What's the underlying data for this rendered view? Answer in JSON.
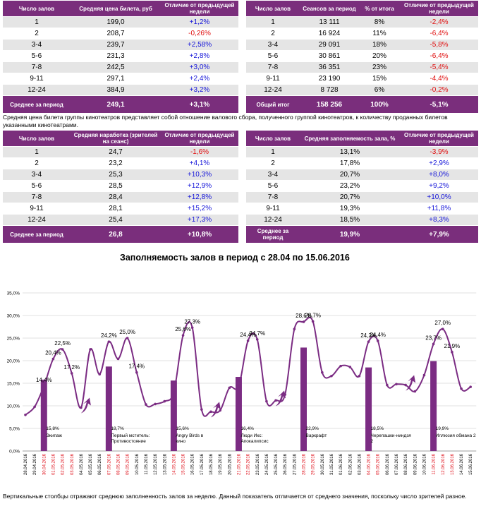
{
  "table1": {
    "headers": [
      "Число залов",
      "Средняя цена билета, руб",
      "Отличие от предыдущей недели"
    ],
    "rows": [
      [
        "1",
        "199,0",
        "+1,2%"
      ],
      [
        "2",
        "208,7",
        "-0,26%"
      ],
      [
        "3-4",
        "239,7",
        "+2,58%"
      ],
      [
        "5-6",
        "231,3",
        "+2,8%"
      ],
      [
        "7-8",
        "242,5",
        "+3,0%"
      ],
      [
        "9-11",
        "297,1",
        "+2,4%"
      ],
      [
        "12-24",
        "384,9",
        "+3,2%"
      ]
    ],
    "total": [
      "Среднее за период",
      "249,1",
      "+3,1%"
    ]
  },
  "table2": {
    "headers": [
      "Число залов",
      "Сеансов за период",
      "% от итога",
      "Отличие от предыдущей недели"
    ],
    "rows": [
      [
        "1",
        "13 111",
        "8%",
        "-2,4%"
      ],
      [
        "2",
        "16 924",
        "11%",
        "-6,4%"
      ],
      [
        "3-4",
        "29 091",
        "18%",
        "-5,8%"
      ],
      [
        "5-6",
        "30 861",
        "20%",
        "-6,4%"
      ],
      [
        "7-8",
        "36 351",
        "23%",
        "-5,4%"
      ],
      [
        "9-11",
        "23 190",
        "15%",
        "-4,4%"
      ],
      [
        "12-24",
        "8 728",
        "6%",
        "-0,2%"
      ]
    ],
    "total": [
      "Общий итог",
      "158 256",
      "100%",
      "-5,1%"
    ]
  },
  "note1": "Средняя цена билета группы кинотеатров представляет собой отношение валового сбора, полученного группой кинотеатров, к количеству проданных билетов указанными кинотеатрами.",
  "table3": {
    "headers": [
      "Число залов",
      "Средняя наработка (зрителей на сеанс)",
      "Отличие от предыдущей недели"
    ],
    "rows": [
      [
        "1",
        "24,7",
        "-1,6%"
      ],
      [
        "2",
        "23,2",
        "+4,1%"
      ],
      [
        "3-4",
        "25,3",
        "+10,3%"
      ],
      [
        "5-6",
        "28,5",
        "+12,9%"
      ],
      [
        "7-8",
        "28,4",
        "+12,8%"
      ],
      [
        "9-11",
        "28,1",
        "+15,2%"
      ],
      [
        "12-24",
        "25,4",
        "+17,3%"
      ]
    ],
    "total": [
      "Среднее за период",
      "26,8",
      "+10,8%"
    ]
  },
  "table4": {
    "headers": [
      "Число залов",
      "Средняя заполняемость зала, %",
      "Отличие от предыдущей недели"
    ],
    "rows": [
      [
        "1",
        "13,1%",
        "-3,9%"
      ],
      [
        "2",
        "17,8%",
        "+2,9%"
      ],
      [
        "3-4",
        "20,7%",
        "+8,0%"
      ],
      [
        "5-6",
        "23,2%",
        "+9,2%"
      ],
      [
        "7-8",
        "20,7%",
        "+10,0%"
      ],
      [
        "9-11",
        "19,3%",
        "+11,8%"
      ],
      [
        "12-24",
        "18,5%",
        "+8,3%"
      ]
    ],
    "total": [
      "Среднее за период",
      "19,9%",
      "+7,9%"
    ]
  },
  "chart_data": {
    "type": "line",
    "title": "Заполняемость залов в период с 28.04 по 15.06.2016",
    "ylim": [
      0,
      35
    ],
    "yticks": [
      "0,0%",
      "5,0%",
      "10,0%",
      "15,0%",
      "20,0%",
      "25,0%",
      "30,0%",
      "35,0%"
    ],
    "x": [
      "28.04.2016",
      "29.04.2016",
      "30.04.2016",
      "01.05.2016",
      "02.05.2016",
      "03.05.2016",
      "04.05.2016",
      "05.05.2016",
      "06.05.2016",
      "07.05.2016",
      "08.05.2016",
      "09.05.2016",
      "10.05.2016",
      "11.05.2016",
      "12.05.2016",
      "13.05.2016",
      "14.05.2016",
      "15.05.2016",
      "16.05.2016",
      "17.05.2016",
      "18.05.2016",
      "19.05.2016",
      "20.05.2016",
      "21.05.2016",
      "22.05.2016",
      "23.05.2016",
      "24.05.2016",
      "25.05.2016",
      "26.05.2016",
      "27.05.2016",
      "28.05.2016",
      "29.05.2016",
      "30.05.2016",
      "31.05.2016",
      "01.06.2016",
      "02.06.2016",
      "03.06.2016",
      "04.06.2016",
      "05.06.2016",
      "06.06.2016",
      "07.06.2016",
      "08.06.2016",
      "09.06.2016",
      "10.06.2016",
      "11.06.2016",
      "12.06.2016",
      "13.06.2016",
      "14.06.2016",
      "15.06.2016"
    ],
    "weekend_dates": [
      "30.04.2016",
      "01.05.2016",
      "02.05.2016",
      "03.05.2016",
      "07.05.2016",
      "08.05.2016",
      "09.05.2016",
      "14.05.2016",
      "15.05.2016",
      "21.05.2016",
      "22.05.2016",
      "28.05.2016",
      "29.05.2016",
      "04.06.2016",
      "05.06.2016",
      "11.06.2016",
      "12.06.2016",
      "13.06.2016"
    ],
    "series": [
      {
        "name": "Заполняемость по дням",
        "values": [
          8.0,
          9.8,
          14.4,
          20.4,
          22.5,
          17.2,
          9.6,
          22.5,
          17.0,
          24.2,
          20.4,
          25.0,
          17.4,
          10.3,
          10.4,
          11.0,
          13.0,
          25.6,
          27.3,
          9.2,
          8.7,
          9.0,
          14.0,
          14.3,
          24.4,
          24.7,
          11.0,
          11.2,
          12.5,
          27.0,
          28.6,
          28.7,
          17.4,
          16.6,
          18.8,
          18.6,
          16.6,
          24.2,
          24.4,
          14.6,
          14.8,
          14.6,
          13.2,
          16.8,
          23.7,
          27.0,
          21.9,
          13.8,
          14.2
        ]
      }
    ],
    "point_labels": [
      {
        "index": 2,
        "text": "14,4%"
      },
      {
        "index": 3,
        "text": "20,4%"
      },
      {
        "index": 4,
        "text": "22,5%"
      },
      {
        "index": 5,
        "text": "17,2%"
      },
      {
        "index": 9,
        "text": "24,2%"
      },
      {
        "index": 11,
        "text": "25,0%"
      },
      {
        "index": 12,
        "text": "17,4%"
      },
      {
        "index": 17,
        "text": "25,6%"
      },
      {
        "index": 18,
        "text": "27,3%"
      },
      {
        "index": 24,
        "text": "24,4%"
      },
      {
        "index": 25,
        "text": "24,7%"
      },
      {
        "index": 30,
        "text": "28,6%"
      },
      {
        "index": 31,
        "text": "28,7%"
      },
      {
        "index": 37,
        "text": "24,2%"
      },
      {
        "index": 38,
        "text": "24,4%"
      },
      {
        "index": 44,
        "text": "23,7%"
      },
      {
        "index": 45,
        "text": "27,0%"
      },
      {
        "index": 46,
        "text": "21,9%"
      }
    ],
    "weekly_bars": [
      {
        "index": 2,
        "value": 15.8,
        "label": "15,8%",
        "movie": "Экипаж"
      },
      {
        "index": 9,
        "value": 18.7,
        "label": "18,7%",
        "movie": "Первый мститель: Противостояние"
      },
      {
        "index": 16,
        "value": 15.6,
        "label": "15,6%",
        "movie": "Angry Birds в кино"
      },
      {
        "index": 23,
        "value": 16.4,
        "label": "16,4%",
        "movie": "Люди Икс: Апокалипсис"
      },
      {
        "index": 30,
        "value": 22.9,
        "label": "22,9%",
        "movie": "Варкрафт"
      },
      {
        "index": 37,
        "value": 18.5,
        "label": "18,5%",
        "movie": "Черепашки-ниндзя 2"
      },
      {
        "index": 44,
        "value": 19.9,
        "label": "19,9%",
        "movie": "Иллюзия обмана 2"
      }
    ],
    "trend_arrow_after_indices": [
      6,
      20,
      27,
      41
    ],
    "colors": {
      "line": "#7b2c83",
      "bar": "#7b2c83",
      "weekend": "#e0101a",
      "text": "#000000",
      "grid": "#d9d9d9"
    }
  },
  "note2": "Вертикальные столбцы отражают среднюю заполненность залов за неделю. Данный показатель отличается от среднего значения, поскольку число зрителей разное."
}
